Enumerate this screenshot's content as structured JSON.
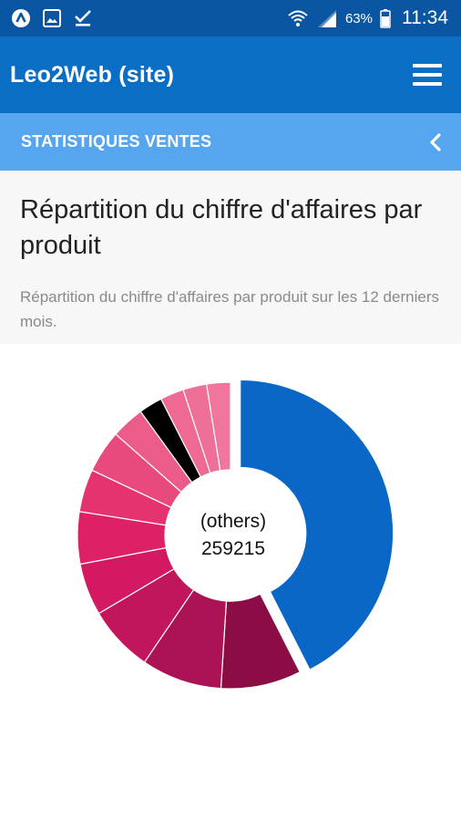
{
  "status_bar": {
    "battery": "63%",
    "time": "11:34",
    "icons": [
      "app-a-icon",
      "image-icon",
      "download-done-icon",
      "wifi-icon",
      "signal-icon",
      "battery-icon"
    ]
  },
  "app_bar": {
    "title": "Leo2Web (site)",
    "menu_icon": "hamburger-menu-icon"
  },
  "section": {
    "title": "STATISTIQUES VENTES",
    "back_icon": "chevron-left-icon"
  },
  "card": {
    "title": "Répartition du chiffre d'affaires par produit",
    "subtitle": "Répartition du chiffre d'affaires par produit sur les 12 derniers mois."
  },
  "chart_data": {
    "type": "pie",
    "variant": "donut",
    "center_label": "(others)",
    "center_value": "259215",
    "slices": [
      {
        "value": 42.5,
        "color": "#0a67c6",
        "exploded": true
      },
      {
        "value": 8.5,
        "color": "#8c0d46"
      },
      {
        "value": 8.5,
        "color": "#ac1354"
      },
      {
        "value": 7.0,
        "color": "#c2165c"
      },
      {
        "value": 5.5,
        "color": "#d31961"
      },
      {
        "value": 5.5,
        "color": "#de2066"
      },
      {
        "value": 4.5,
        "color": "#e5336f"
      },
      {
        "value": 4.5,
        "color": "#e94a7d"
      },
      {
        "value": 3.5,
        "color": "#ec5c89"
      },
      {
        "value": 2.5,
        "color": "#000000"
      },
      {
        "value": 2.5,
        "color": "#ee6a92"
      },
      {
        "value": 2.5,
        "color": "#ef7097"
      },
      {
        "value": 2.5,
        "color": "#f0769b"
      }
    ]
  }
}
